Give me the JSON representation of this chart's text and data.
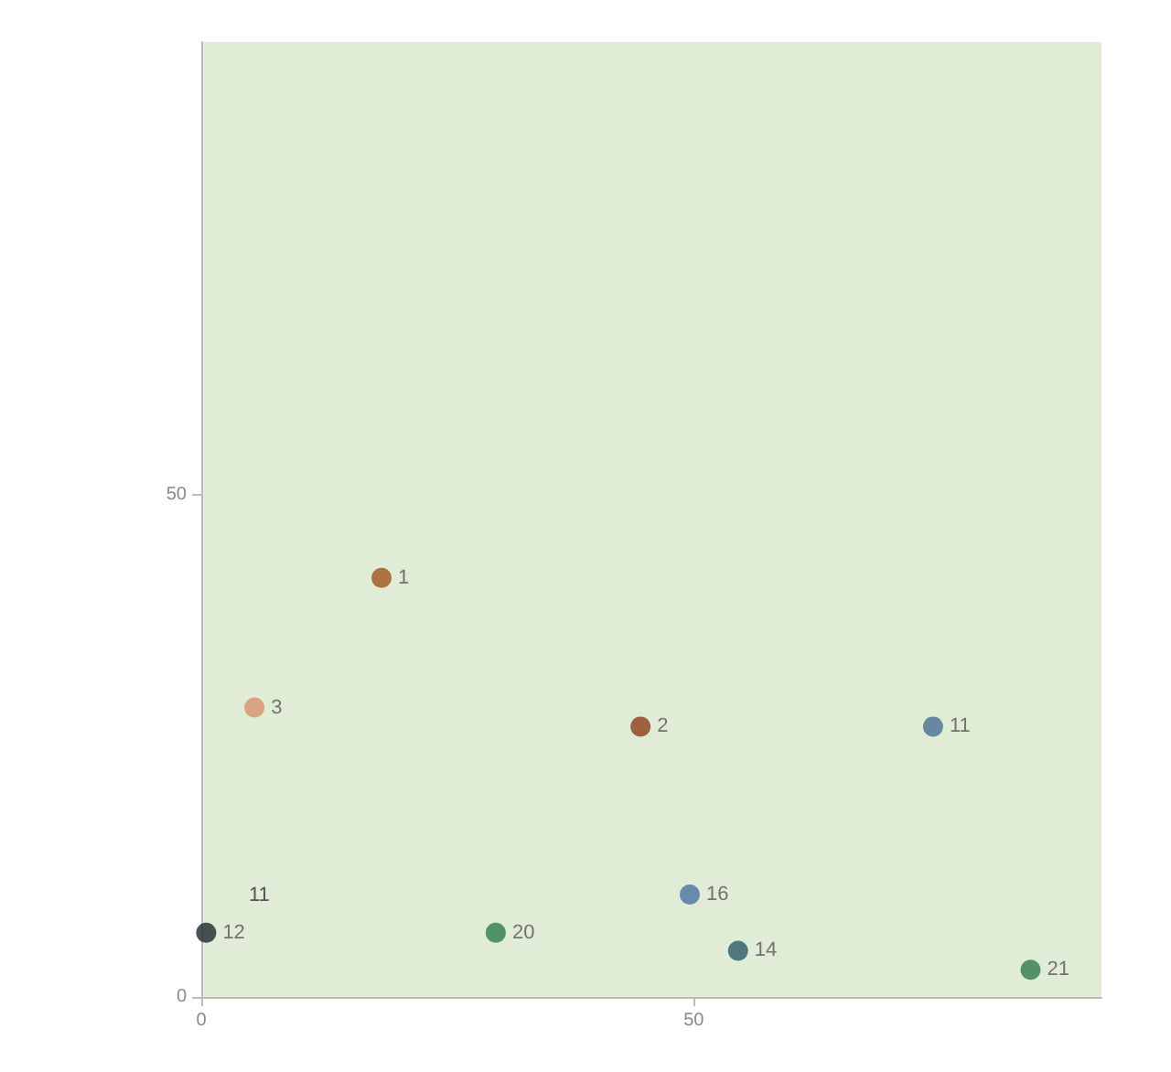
{
  "chart_data": {
    "type": "scatter",
    "marker": "circle",
    "grid": false,
    "x": [
      18.3,
      5.4,
      44.6,
      74.3,
      0.5,
      29.9,
      49.6,
      54.5,
      84.2
    ],
    "values": [
      41.7,
      28.8,
      26.9,
      26.9,
      6.4,
      6.4,
      10.2,
      4.6,
      2.7
    ],
    "colors": [
      "#a0541e",
      "#d9926a",
      "#8a3e1a",
      "#4a6e96",
      "#1e2a2e",
      "#2e7a4e",
      "#4a72a0",
      "#2a5a66",
      "#2e7a4e"
    ],
    "xlim": [
      0,
      91.4
    ],
    "xticks": [
      0,
      50
    ],
    "ylim": [
      0,
      95
    ],
    "yticks": [
      0,
      50
    ],
    "annotations": [
      {
        "text": "1",
        "x": 18.3,
        "y": 41.7
      },
      {
        "text": "3",
        "x": 5.4,
        "y": 28.8
      },
      {
        "text": "2",
        "x": 44.6,
        "y": 26.9
      },
      {
        "text": "11",
        "x": 74.3,
        "y": 26.9
      },
      "11",
      {
        "text": "12",
        "x": 0.5,
        "y": 6.4
      },
      {
        "text": "20",
        "x": 29.9,
        "y": 6.4
      },
      {
        "text": "16",
        "x": 49.6,
        "y": 10.2
      },
      {
        "text": "14",
        "x": 54.5,
        "y": 4.6
      },
      {
        "text": "21",
        "x": 84.2,
        "y": 2.7
      }
    ]
  }
}
